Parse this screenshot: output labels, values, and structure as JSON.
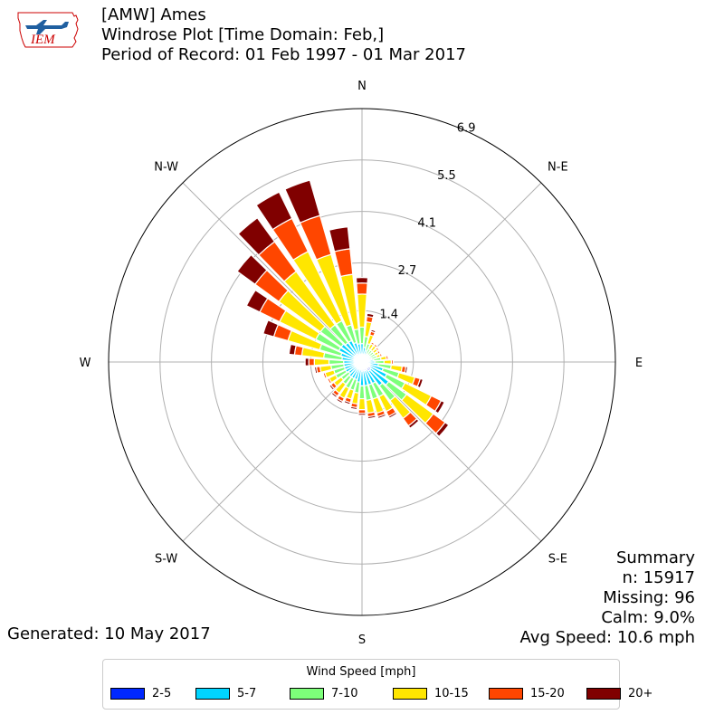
{
  "header": {
    "logo_text": "IEM",
    "title_line1": "[AMW] Ames",
    "title_line2": "Windrose Plot [Time Domain: Feb,]",
    "title_line3": "Period of Record: 01 Feb 1997 - 01 Mar 2017"
  },
  "summary": {
    "heading": "Summary",
    "n": "n: 15917",
    "missing": "Missing: 96",
    "calm": "Calm: 9.0%",
    "avg_speed": "Avg Speed: 10.6 mph"
  },
  "generated": "Generated: 10 May 2017",
  "legend": {
    "title": "Wind Speed [mph]",
    "items": [
      {
        "label": "2-5",
        "color": "#0028ff"
      },
      {
        "label": "5-7",
        "color": "#00d4ff"
      },
      {
        "label": "7-10",
        "color": "#7dff7a"
      },
      {
        "label": "10-15",
        "color": "#ffe600"
      },
      {
        "label": "15-20",
        "color": "#ff4600"
      },
      {
        "label": "20+",
        "color": "#800000"
      }
    ]
  },
  "chart_data": {
    "type": "windrose",
    "direction_labels": [
      "N",
      "N-E",
      "E",
      "S-E",
      "S",
      "S-W",
      "W",
      "N-W"
    ],
    "radial_ticks": [
      1.4,
      2.7,
      4.1,
      5.5,
      6.9
    ],
    "rmax": 6.9,
    "grid": true,
    "bin_degrees": 10,
    "directions": [
      0,
      10,
      20,
      30,
      40,
      50,
      60,
      70,
      80,
      90,
      100,
      110,
      120,
      130,
      140,
      150,
      160,
      170,
      180,
      190,
      200,
      210,
      220,
      230,
      240,
      250,
      260,
      270,
      280,
      290,
      300,
      310,
      320,
      330,
      340,
      350
    ],
    "series": [
      {
        "name": "2-5",
        "color": "#0028ff",
        "values": [
          0.2,
          0.15,
          0.12,
          0.1,
          0.1,
          0.1,
          0.1,
          0.12,
          0.12,
          0.15,
          0.15,
          0.2,
          0.25,
          0.3,
          0.3,
          0.25,
          0.25,
          0.25,
          0.25,
          0.2,
          0.2,
          0.2,
          0.2,
          0.2,
          0.2,
          0.2,
          0.2,
          0.2,
          0.2,
          0.2,
          0.25,
          0.25,
          0.25,
          0.25,
          0.2,
          0.2
        ]
      },
      {
        "name": "5-7",
        "color": "#00d4ff",
        "values": [
          0.3,
          0.25,
          0.2,
          0.15,
          0.15,
          0.15,
          0.15,
          0.15,
          0.2,
          0.2,
          0.3,
          0.4,
          0.5,
          0.6,
          0.5,
          0.4,
          0.4,
          0.4,
          0.4,
          0.35,
          0.3,
          0.3,
          0.3,
          0.25,
          0.3,
          0.3,
          0.3,
          0.3,
          0.35,
          0.4,
          0.45,
          0.45,
          0.4,
          0.4,
          0.35,
          0.3
        ]
      },
      {
        "name": "7-10",
        "color": "#7dff7a",
        "values": [
          0.45,
          0.3,
          0.2,
          0.15,
          0.15,
          0.15,
          0.15,
          0.15,
          0.2,
          0.25,
          0.35,
          0.45,
          0.55,
          0.6,
          0.5,
          0.4,
          0.4,
          0.4,
          0.35,
          0.3,
          0.3,
          0.3,
          0.25,
          0.25,
          0.3,
          0.3,
          0.35,
          0.4,
          0.5,
          0.6,
          0.7,
          0.7,
          0.6,
          0.6,
          0.5,
          0.4
        ]
      },
      {
        "name": "10-15",
        "color": "#ffe600",
        "values": [
          0.9,
          0.4,
          0.25,
          0.15,
          0.15,
          0.12,
          0.1,
          0.1,
          0.15,
          0.2,
          0.3,
          0.45,
          0.8,
          0.9,
          0.6,
          0.45,
          0.4,
          0.35,
          0.3,
          0.3,
          0.25,
          0.3,
          0.3,
          0.25,
          0.2,
          0.25,
          0.3,
          0.4,
          0.6,
          0.9,
          1.1,
          1.4,
          1.8,
          2.1,
          2.0,
          1.5
        ]
      },
      {
        "name": "15-20",
        "color": "#ff4600",
        "values": [
          0.3,
          0.15,
          0.1,
          0.05,
          0.05,
          0.05,
          0.05,
          0.05,
          0.05,
          0.05,
          0.1,
          0.15,
          0.3,
          0.4,
          0.25,
          0.15,
          0.1,
          0.1,
          0.1,
          0.1,
          0.1,
          0.1,
          0.1,
          0.1,
          0.05,
          0.05,
          0.1,
          0.15,
          0.2,
          0.4,
          0.6,
          0.8,
          1.0,
          1.0,
          1.1,
          0.7
        ]
      },
      {
        "name": "20+",
        "color": "#800000",
        "values": [
          0.15,
          0.08,
          0.05,
          0.0,
          0.0,
          0.0,
          0.0,
          0.0,
          0.0,
          0.0,
          0.05,
          0.08,
          0.1,
          0.12,
          0.08,
          0.05,
          0.05,
          0.05,
          0.05,
          0.05,
          0.05,
          0.05,
          0.05,
          0.05,
          0.0,
          0.0,
          0.05,
          0.1,
          0.15,
          0.3,
          0.4,
          0.6,
          0.8,
          0.8,
          1.0,
          0.6
        ]
      }
    ]
  }
}
